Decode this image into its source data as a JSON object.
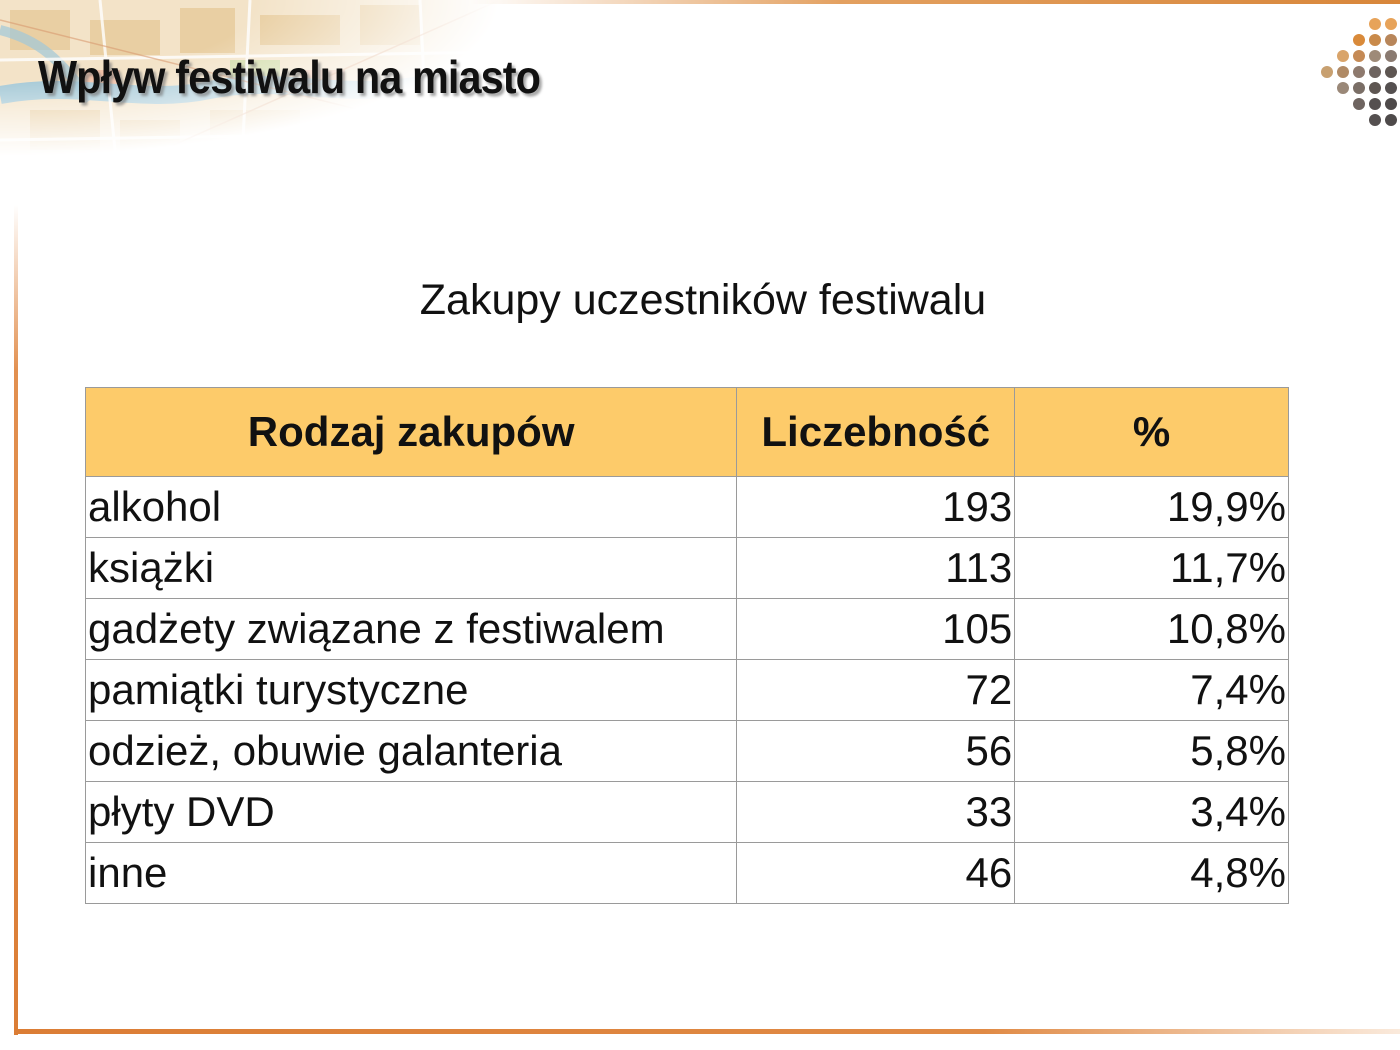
{
  "slide": {
    "title": "Wpływ festiwalu na miasto",
    "subtitle": "Zakupy uczestników festiwalu"
  },
  "table": {
    "headers": [
      "Rodzaj zakupów",
      "Liczebność",
      "%"
    ],
    "rows": [
      {
        "category": "alkohol",
        "count": "193",
        "percent": "19,9%"
      },
      {
        "category": "książki",
        "count": "113",
        "percent": "11,7%"
      },
      {
        "category": "gadżety związane z festiwalem",
        "count": "105",
        "percent": "10,8%"
      },
      {
        "category": "pamiątki turystyczne",
        "count": "72",
        "percent": "7,4%"
      },
      {
        "category": "odzież, obuwie galanteria",
        "count": "56",
        "percent": "5,8%"
      },
      {
        "category": "płyty DVD",
        "count": "33",
        "percent": "3,4%"
      },
      {
        "category": "inne",
        "count": "46",
        "percent": "4,8%"
      }
    ]
  },
  "colors": {
    "header_fill": "#fdcb6a",
    "frame_accent": "#db7d35"
  },
  "decorations": {
    "header_image": "city-map-illustration",
    "logo": "dots-logo-icon"
  }
}
